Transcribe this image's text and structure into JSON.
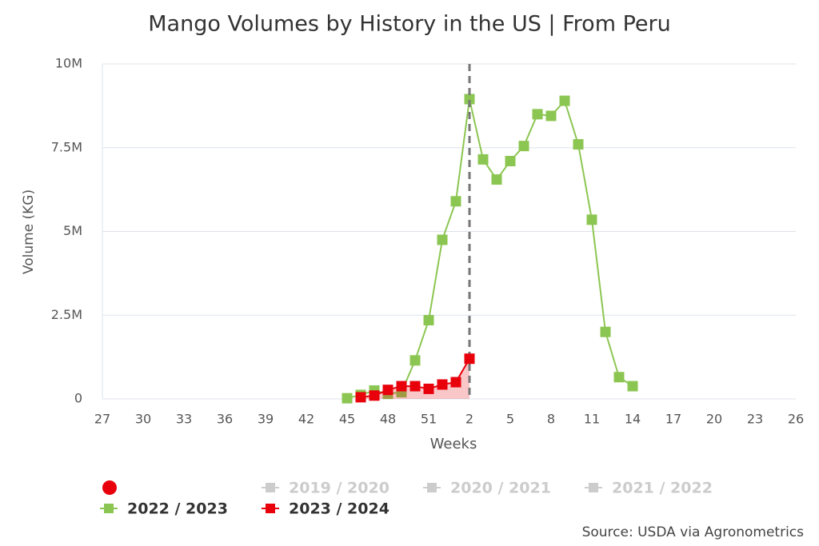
{
  "chart_data": {
    "type": "line",
    "title": "Mango Volumes by History in the US | From Peru",
    "x_label": "Weeks",
    "y_label": "Volume (KG)",
    "source": "Source: USDA via Agronometrics",
    "categories": [
      27,
      null,
      null,
      30,
      null,
      null,
      33,
      null,
      null,
      36,
      null,
      null,
      39,
      null,
      null,
      42,
      null,
      null,
      45,
      null,
      null,
      48,
      null,
      null,
      51,
      null,
      null,
      2,
      null,
      null,
      5,
      null,
      null,
      8,
      null,
      null,
      11,
      null,
      null,
      14,
      null,
      null,
      17,
      null,
      null,
      20,
      null,
      null,
      23,
      null,
      null,
      26
    ],
    "ylim": [
      0,
      10000000
    ],
    "yticks": [
      0,
      {
        "value": 2500000,
        "label": "2.5M"
      },
      {
        "value": 5000000,
        "label": "5M"
      },
      {
        "value": 7500000,
        "label": "7.5M"
      },
      {
        "value": 10000000,
        "label": "10M"
      }
    ],
    "grid": true,
    "series": [
      {
        "name": "2019 / 2020",
        "color": "#cccccc",
        "visible": false,
        "values": [
          null,
          null,
          null,
          null,
          null,
          null,
          null,
          null,
          null,
          null,
          null,
          null,
          null,
          null,
          null,
          null,
          null,
          null,
          null,
          null,
          null,
          null,
          null,
          null,
          null,
          null,
          null,
          null,
          null,
          null,
          null,
          null,
          null,
          null,
          null,
          null,
          null,
          null,
          null,
          null,
          null,
          null,
          null,
          null,
          null,
          null,
          null,
          null,
          null,
          null,
          null,
          null
        ]
      },
      {
        "name": "2020 / 2021",
        "color": "#cccccc",
        "visible": false,
        "values": [
          null,
          null,
          null,
          null,
          null,
          null,
          null,
          null,
          null,
          null,
          null,
          null,
          null,
          null,
          null,
          null,
          null,
          null,
          null,
          null,
          null,
          null,
          null,
          null,
          null,
          null,
          null,
          null,
          null,
          null,
          null,
          null,
          null,
          null,
          null,
          null,
          null,
          null,
          null,
          null,
          null,
          null,
          null,
          null,
          null,
          null,
          null,
          null,
          null,
          null,
          null,
          null
        ]
      },
      {
        "name": "2021 / 2022",
        "color": "#cccccc",
        "visible": false,
        "values": [
          null,
          null,
          null,
          null,
          null,
          null,
          null,
          null,
          null,
          null,
          null,
          null,
          null,
          null,
          null,
          null,
          null,
          null,
          null,
          null,
          null,
          null,
          null,
          null,
          null,
          null,
          null,
          null,
          null,
          null,
          null,
          null,
          null,
          null,
          null,
          null,
          null,
          null,
          null,
          null,
          null,
          null,
          null,
          null,
          null,
          null,
          null,
          null,
          null,
          null,
          null,
          null
        ]
      },
      {
        "name": "2022 / 2023",
        "color": "#8cc652",
        "visible": true,
        "values": [
          null,
          null,
          null,
          null,
          null,
          null,
          null,
          null,
          null,
          null,
          null,
          null,
          null,
          null,
          null,
          null,
          null,
          null,
          20000,
          120000,
          250000,
          150000,
          200000,
          1150000,
          2350000,
          4750000,
          5900000,
          8950000,
          7150000,
          6550000,
          7100000,
          7550000,
          8500000,
          8450000,
          8900000,
          7600000,
          5350000,
          2000000,
          650000,
          380000,
          null,
          null,
          null,
          null,
          null,
          null,
          null,
          null,
          null,
          null,
          null,
          null
        ]
      },
      {
        "name": "2023 / 2024",
        "color": "#e8000b",
        "visible": true,
        "area": true,
        "values": [
          null,
          null,
          null,
          null,
          null,
          null,
          null,
          null,
          null,
          null,
          null,
          null,
          null,
          null,
          null,
          null,
          null,
          null,
          null,
          50000,
          100000,
          270000,
          380000,
          380000,
          300000,
          430000,
          500000,
          1200000,
          null,
          null,
          null,
          null,
          null,
          null,
          null,
          null,
          null,
          null,
          null,
          null,
          null,
          null,
          null,
          null,
          null,
          null,
          null,
          null,
          null,
          null,
          null,
          null
        ]
      }
    ]
  }
}
